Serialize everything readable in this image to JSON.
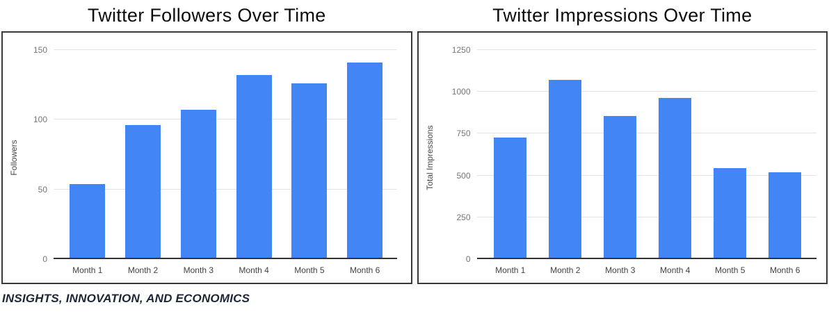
{
  "footer": {
    "text": "INSIGHTS, INNOVATION, AND ECONOMICS"
  },
  "theme": {
    "bar_color": "#4285f4",
    "gridline_color": "#e3e3e3",
    "axis_line_color": "#333333",
    "ytick_color": "#757575",
    "xtick_color": "#424242"
  },
  "chart_data": [
    {
      "type": "bar",
      "title": "Twitter Followers Over Time",
      "categories": [
        "Month 1",
        "Month 2",
        "Month 3",
        "Month 4",
        "Month 5",
        "Month 6"
      ],
      "values": [
        54,
        96,
        107,
        132,
        126,
        141
      ],
      "xlabel": "",
      "ylabel": "Followers",
      "ylim": [
        0,
        150
      ],
      "yticks": [
        0,
        50,
        100,
        150
      ],
      "bar_color": "#4285f4",
      "grid": true,
      "legend_position": "none"
    },
    {
      "type": "bar",
      "title": "Twitter Impressions Over Time",
      "categories": [
        "Month 1",
        "Month 2",
        "Month 3",
        "Month 4",
        "Month 5",
        "Month 6"
      ],
      "values": [
        725,
        1070,
        855,
        965,
        545,
        520
      ],
      "xlabel": "",
      "ylabel": "Total Impressions",
      "ylim": [
        0,
        1250
      ],
      "yticks": [
        0,
        250,
        500,
        750,
        1000,
        1250
      ],
      "bar_color": "#4285f4",
      "grid": true,
      "legend_position": "none"
    }
  ]
}
